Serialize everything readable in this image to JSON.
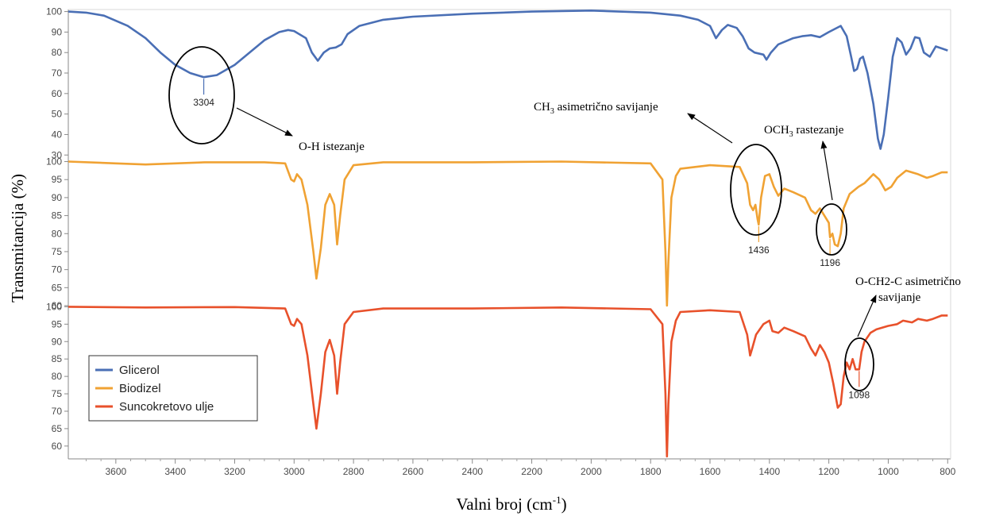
{
  "chart_data": {
    "type": "line",
    "xlabel": "Valni broj (cm⁻¹)",
    "ylabel": "Transmitancija (%)",
    "xlim": [
      3760,
      790
    ],
    "xticks": [
      3600,
      3400,
      3200,
      3000,
      2800,
      2600,
      2400,
      2200,
      2000,
      1800,
      1600,
      1400,
      1200,
      1000,
      800
    ],
    "grid": false,
    "legend_position": "bottom-left",
    "panels": [
      {
        "name": "Glicerol",
        "color": "#4a6fb5",
        "ylim": [
          27,
          101
        ],
        "yticks": [
          30,
          40,
          50,
          60,
          70,
          80,
          90,
          100
        ],
        "points": [
          [
            3760,
            100
          ],
          [
            3700,
            99.5
          ],
          [
            3640,
            98
          ],
          [
            3560,
            93
          ],
          [
            3500,
            87
          ],
          [
            3450,
            80
          ],
          [
            3400,
            74
          ],
          [
            3350,
            70
          ],
          [
            3304,
            68
          ],
          [
            3260,
            69
          ],
          [
            3200,
            74
          ],
          [
            3150,
            80
          ],
          [
            3100,
            86
          ],
          [
            3050,
            90
          ],
          [
            3020,
            91
          ],
          [
            3000,
            90.5
          ],
          [
            2960,
            87
          ],
          [
            2940,
            80
          ],
          [
            2920,
            76
          ],
          [
            2900,
            80
          ],
          [
            2880,
            82
          ],
          [
            2860,
            82.5
          ],
          [
            2840,
            84
          ],
          [
            2820,
            89
          ],
          [
            2780,
            93
          ],
          [
            2700,
            96
          ],
          [
            2600,
            97.5
          ],
          [
            2400,
            99
          ],
          [
            2200,
            100
          ],
          [
            2000,
            100.5
          ],
          [
            1800,
            99.5
          ],
          [
            1700,
            98
          ],
          [
            1640,
            96
          ],
          [
            1600,
            93
          ],
          [
            1580,
            87
          ],
          [
            1560,
            91
          ],
          [
            1540,
            93.5
          ],
          [
            1510,
            92
          ],
          [
            1490,
            88
          ],
          [
            1470,
            82
          ],
          [
            1450,
            80
          ],
          [
            1420,
            79
          ],
          [
            1410,
            76.5
          ],
          [
            1395,
            80
          ],
          [
            1370,
            84
          ],
          [
            1320,
            87
          ],
          [
            1290,
            88
          ],
          [
            1260,
            88.5
          ],
          [
            1230,
            87.5
          ],
          [
            1200,
            90
          ],
          [
            1160,
            93
          ],
          [
            1140,
            88
          ],
          [
            1125,
            78
          ],
          [
            1115,
            71
          ],
          [
            1105,
            72
          ],
          [
            1095,
            77
          ],
          [
            1085,
            78
          ],
          [
            1070,
            70
          ],
          [
            1050,
            55
          ],
          [
            1035,
            38
          ],
          [
            1026,
            33
          ],
          [
            1015,
            40
          ],
          [
            1000,
            58
          ],
          [
            985,
            78
          ],
          [
            970,
            87
          ],
          [
            955,
            85
          ],
          [
            940,
            79
          ],
          [
            925,
            82
          ],
          [
            910,
            87.5
          ],
          [
            895,
            87
          ],
          [
            880,
            80
          ],
          [
            860,
            78
          ],
          [
            840,
            83
          ],
          [
            820,
            82
          ],
          [
            800,
            81
          ]
        ],
        "annotations": [
          {
            "x": 3304,
            "label": "3304"
          }
        ]
      },
      {
        "name": "Biodizel",
        "color": "#f0a233",
        "ylim": [
          60,
          101
        ],
        "yticks": [
          60,
          65,
          70,
          75,
          80,
          85,
          90,
          95,
          100
        ],
        "points": [
          [
            3760,
            100
          ],
          [
            3600,
            99.5
          ],
          [
            3500,
            99.2
          ],
          [
            3400,
            99.5
          ],
          [
            3300,
            99.8
          ],
          [
            3100,
            99.8
          ],
          [
            3030,
            99.5
          ],
          [
            3010,
            95
          ],
          [
            3000,
            94.5
          ],
          [
            2990,
            96.5
          ],
          [
            2975,
            95
          ],
          [
            2955,
            88
          ],
          [
            2935,
            75
          ],
          [
            2925,
            67.5
          ],
          [
            2910,
            76
          ],
          [
            2895,
            88
          ],
          [
            2880,
            91
          ],
          [
            2865,
            88
          ],
          [
            2855,
            77
          ],
          [
            2845,
            85
          ],
          [
            2830,
            95
          ],
          [
            2800,
            99
          ],
          [
            2700,
            99.8
          ],
          [
            2400,
            99.8
          ],
          [
            2100,
            100
          ],
          [
            1800,
            99.5
          ],
          [
            1760,
            95
          ],
          [
            1750,
            75
          ],
          [
            1745,
            60
          ],
          [
            1740,
            72
          ],
          [
            1730,
            90
          ],
          [
            1715,
            96
          ],
          [
            1700,
            98
          ],
          [
            1650,
            98.5
          ],
          [
            1600,
            99
          ],
          [
            1500,
            98.5
          ],
          [
            1475,
            94
          ],
          [
            1465,
            88
          ],
          [
            1455,
            86.5
          ],
          [
            1447,
            88
          ],
          [
            1440,
            84
          ],
          [
            1436,
            82.5
          ],
          [
            1428,
            90
          ],
          [
            1415,
            96
          ],
          [
            1400,
            96.5
          ],
          [
            1385,
            93
          ],
          [
            1370,
            90.5
          ],
          [
            1350,
            92.5
          ],
          [
            1320,
            91.5
          ],
          [
            1280,
            90
          ],
          [
            1260,
            86.5
          ],
          [
            1245,
            85.5
          ],
          [
            1230,
            87
          ],
          [
            1215,
            85
          ],
          [
            1200,
            83
          ],
          [
            1196,
            79
          ],
          [
            1188,
            80
          ],
          [
            1180,
            77
          ],
          [
            1170,
            76.5
          ],
          [
            1160,
            80
          ],
          [
            1150,
            87
          ],
          [
            1130,
            91
          ],
          [
            1100,
            93
          ],
          [
            1080,
            94
          ],
          [
            1050,
            96.5
          ],
          [
            1030,
            95
          ],
          [
            1010,
            92
          ],
          [
            990,
            93
          ],
          [
            970,
            95.5
          ],
          [
            940,
            97.5
          ],
          [
            900,
            96.5
          ],
          [
            870,
            95.5
          ],
          [
            850,
            96
          ],
          [
            820,
            97
          ],
          [
            800,
            97
          ]
        ],
        "annotations": [
          {
            "x": 1436,
            "label": "1436"
          },
          {
            "x": 1196,
            "label": "1196"
          }
        ]
      },
      {
        "name": "Suncokretovo ulje",
        "color": "#e8512b",
        "ylim": [
          57,
          101
        ],
        "yticks": [
          60,
          65,
          70,
          75,
          80,
          85,
          90,
          95,
          100
        ],
        "points": [
          [
            3760,
            100
          ],
          [
            3500,
            99.8
          ],
          [
            3200,
            99.9
          ],
          [
            3030,
            99.5
          ],
          [
            3010,
            95
          ],
          [
            3000,
            94.5
          ],
          [
            2990,
            96.5
          ],
          [
            2975,
            95
          ],
          [
            2955,
            86
          ],
          [
            2935,
            72
          ],
          [
            2925,
            65
          ],
          [
            2910,
            75
          ],
          [
            2895,
            87
          ],
          [
            2880,
            90.5
          ],
          [
            2865,
            86
          ],
          [
            2855,
            75
          ],
          [
            2845,
            84
          ],
          [
            2830,
            95
          ],
          [
            2800,
            98.5
          ],
          [
            2700,
            99.5
          ],
          [
            2400,
            99.5
          ],
          [
            2100,
            99.8
          ],
          [
            1800,
            99.3
          ],
          [
            1760,
            95
          ],
          [
            1750,
            75
          ],
          [
            1745,
            57
          ],
          [
            1740,
            72
          ],
          [
            1730,
            90
          ],
          [
            1715,
            96
          ],
          [
            1700,
            98.5
          ],
          [
            1600,
            99
          ],
          [
            1500,
            98.5
          ],
          [
            1475,
            92
          ],
          [
            1465,
            86
          ],
          [
            1458,
            88
          ],
          [
            1445,
            92
          ],
          [
            1420,
            95
          ],
          [
            1400,
            96
          ],
          [
            1390,
            93
          ],
          [
            1370,
            92.5
          ],
          [
            1350,
            94
          ],
          [
            1320,
            93
          ],
          [
            1280,
            91.5
          ],
          [
            1260,
            88
          ],
          [
            1245,
            86
          ],
          [
            1230,
            89
          ],
          [
            1215,
            87
          ],
          [
            1200,
            84
          ],
          [
            1185,
            78
          ],
          [
            1170,
            71
          ],
          [
            1160,
            72
          ],
          [
            1150,
            80
          ],
          [
            1140,
            84
          ],
          [
            1130,
            82
          ],
          [
            1120,
            85
          ],
          [
            1110,
            82
          ],
          [
            1098,
            82
          ],
          [
            1090,
            87
          ],
          [
            1080,
            90
          ],
          [
            1060,
            92.5
          ],
          [
            1040,
            93.5
          ],
          [
            1000,
            94.5
          ],
          [
            970,
            95
          ],
          [
            950,
            96
          ],
          [
            920,
            95.5
          ],
          [
            900,
            96.5
          ],
          [
            870,
            96
          ],
          [
            850,
            96.5
          ],
          [
            820,
            97.5
          ],
          [
            800,
            97.5
          ]
        ],
        "annotations": [
          {
            "x": 1098,
            "label": "1098"
          }
        ]
      }
    ]
  },
  "annotation_texts": {
    "oh": "O-H istezanje",
    "ch3_main": "CH",
    "ch3_sub": "3",
    "ch3_rest": " asimetrično savijanje",
    "och3_main": "OCH",
    "och3_sub": "3",
    "och3_rest": " rastezanje",
    "och2_line1": "O-CH2-C asimetrično",
    "och2_line2": "savijanje"
  },
  "legend": [
    "Glicerol",
    "Biodizel",
    "Suncokretovo ulje"
  ],
  "axis_labels": {
    "x_main": "Valni broj (cm",
    "x_sup": "-1",
    "x_end": ")",
    "y": "Transmitancija (%)"
  }
}
